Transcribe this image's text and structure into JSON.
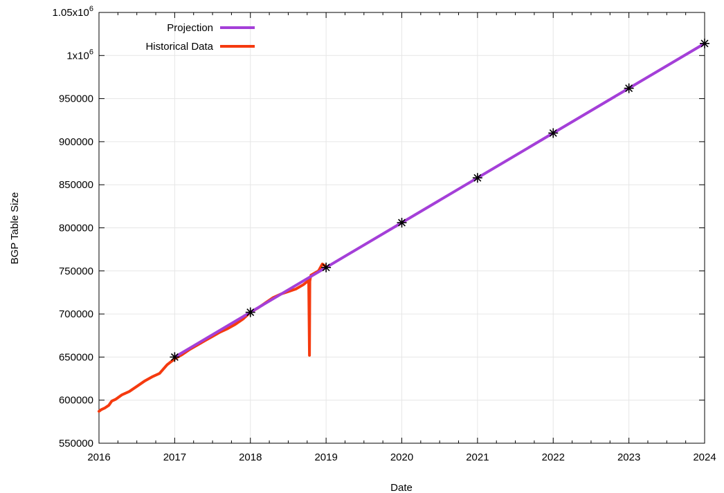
{
  "chart_data": {
    "type": "line",
    "title": "",
    "xlabel": "Date",
    "ylabel": "BGP Table Size",
    "xlim": [
      2016,
      2024
    ],
    "ylim": [
      550000,
      1050000
    ],
    "x_ticks": [
      {
        "value": 2016,
        "label": "2016"
      },
      {
        "value": 2017,
        "label": "2017"
      },
      {
        "value": 2018,
        "label": "2018"
      },
      {
        "value": 2019,
        "label": "2019"
      },
      {
        "value": 2020,
        "label": "2020"
      },
      {
        "value": 2021,
        "label": "2021"
      },
      {
        "value": 2022,
        "label": "2022"
      },
      {
        "value": 2023,
        "label": "2023"
      },
      {
        "value": 2024,
        "label": "2024"
      }
    ],
    "y_ticks": [
      {
        "value": 550000,
        "label": "550000"
      },
      {
        "value": 600000,
        "label": "600000"
      },
      {
        "value": 650000,
        "label": "650000"
      },
      {
        "value": 700000,
        "label": "700000"
      },
      {
        "value": 750000,
        "label": "750000"
      },
      {
        "value": 800000,
        "label": "800000"
      },
      {
        "value": 850000,
        "label": "850000"
      },
      {
        "value": 900000,
        "label": "900000"
      },
      {
        "value": 950000,
        "label": "950000"
      },
      {
        "value": 1000000,
        "label": "1x10",
        "sup": "6"
      },
      {
        "value": 1050000,
        "label": "1.05x10",
        "sup": "6"
      }
    ],
    "grid": true,
    "legend_position": "top-left",
    "series": [
      {
        "name": "Projection",
        "color": "#a43fd8",
        "x": [
          2017,
          2018,
          2019,
          2020,
          2021,
          2022,
          2023,
          2024
        ],
        "y": [
          650000,
          702000,
          754000,
          806000,
          858000,
          910000,
          962000,
          1014000
        ],
        "markers": true
      },
      {
        "name": "Historical Data",
        "color": "#f53a0f",
        "x": [
          2016.0,
          2016.03,
          2016.08,
          2016.13,
          2016.17,
          2016.22,
          2016.3,
          2016.4,
          2016.5,
          2016.6,
          2016.7,
          2016.8,
          2016.9,
          2017.0,
          2017.1,
          2017.2,
          2017.3,
          2017.4,
          2017.5,
          2017.6,
          2017.7,
          2017.8,
          2017.9,
          2018.0,
          2018.1,
          2018.2,
          2018.3,
          2018.4,
          2018.5,
          2018.6,
          2018.7,
          2018.77,
          2018.78,
          2018.785,
          2018.79,
          2018.8,
          2018.9,
          2018.95,
          2019.0
        ],
        "y": [
          587000,
          589000,
          591000,
          594000,
          599000,
          601000,
          606000,
          610000,
          616000,
          622000,
          627000,
          631000,
          641000,
          648000,
          653000,
          659000,
          664000,
          669000,
          674000,
          679000,
          683000,
          688000,
          694000,
          702000,
          707000,
          713000,
          719000,
          723000,
          726000,
          729000,
          734000,
          739000,
          652000,
          738000,
          741000,
          745000,
          750000,
          758000,
          755000
        ],
        "markers": false
      }
    ]
  }
}
